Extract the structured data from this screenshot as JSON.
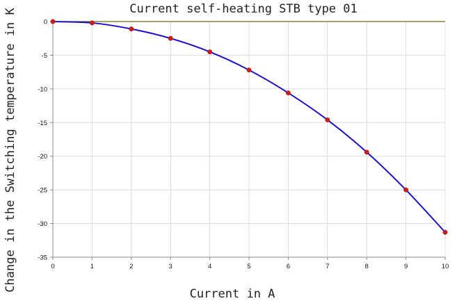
{
  "chart_data": {
    "type": "line",
    "title": "Current self-heating STB type 01",
    "xlabel": "Current in A",
    "ylabel": "Change in the Switching temperature in K",
    "xlim": [
      0,
      10
    ],
    "ylim": [
      -35,
      0
    ],
    "grid": true,
    "x_ticks": [
      0,
      1,
      2,
      3,
      4,
      5,
      6,
      7,
      8,
      9,
      10
    ],
    "y_ticks": [
      0,
      -5,
      -10,
      -15,
      -20,
      -25,
      -30,
      -35
    ],
    "series": [
      {
        "x": [
          0,
          1,
          2,
          3,
          4,
          5,
          6,
          7,
          8,
          9,
          10
        ],
        "y": [
          0,
          -0.2,
          -1.1,
          -2.5,
          -4.5,
          -7.2,
          -10.6,
          -14.6,
          -19.4,
          -25.0,
          -31.3
        ],
        "line_color": "#1a10c8",
        "marker_color": "#d01c1c"
      }
    ],
    "zero_line_color": "#6b6b1e"
  }
}
